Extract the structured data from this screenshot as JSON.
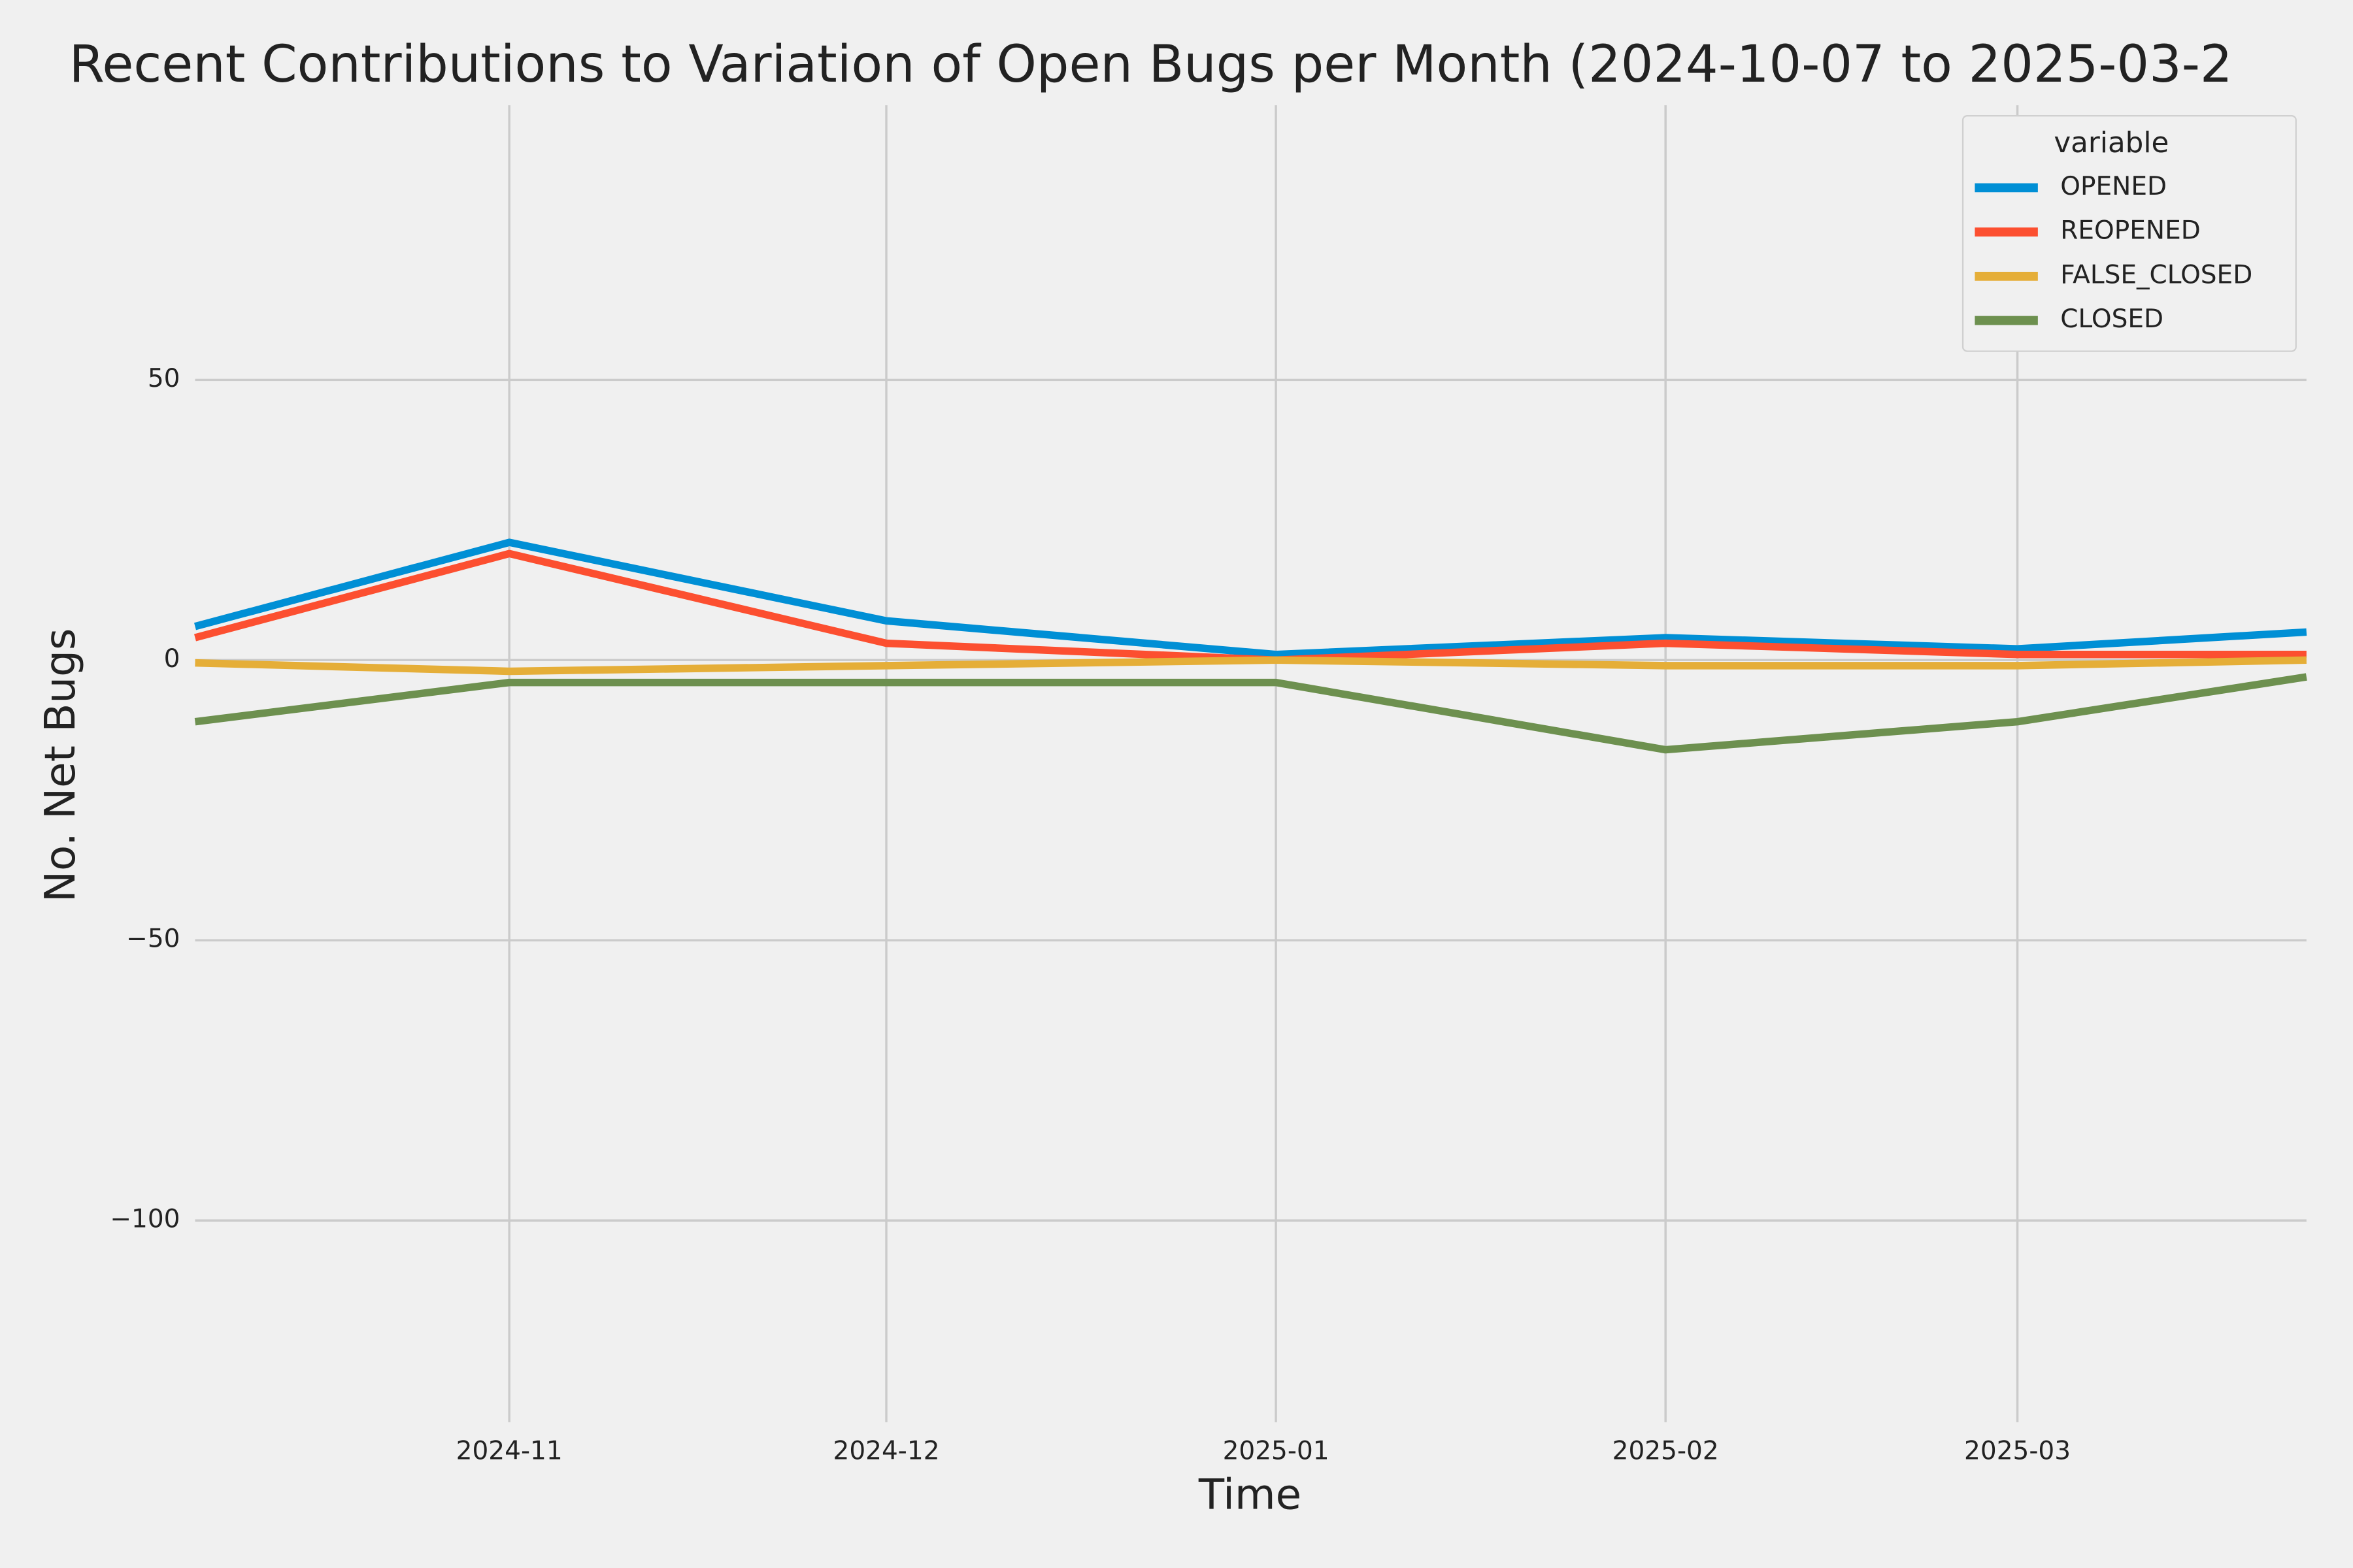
{
  "chart_data": {
    "type": "line",
    "title": "Recent Contributions to Variation of Open Bugs per Month (2024-10-07 to 2025-03-2",
    "x_label": "Time",
    "y_label": "No. Net Bugs",
    "x": [
      "2024-10-07",
      "2024-11",
      "2024-12",
      "2025-01",
      "2025-02",
      "2025-03",
      "2025-03-24"
    ],
    "xlim": [
      "2024-10-07",
      "2025-03-24"
    ],
    "xticks": [
      "2024-11",
      "2024-12",
      "2025-01",
      "2025-02",
      "2025-03"
    ],
    "ylim": [
      -136,
      99
    ],
    "yticks": [
      {
        "value": -100,
        "label": "−100"
      },
      {
        "value": -50,
        "label": "−50"
      },
      0,
      50
    ],
    "grid": true,
    "legend_title": "variable",
    "legend_position": "upper-right",
    "series": [
      {
        "name": "OPENED",
        "color": "#008fd5",
        "values": [
          6,
          21,
          7,
          1,
          4,
          2,
          5
        ]
      },
      {
        "name": "REOPENED",
        "color": "#fc4f30",
        "values": [
          4,
          19,
          3,
          0,
          3,
          1,
          1
        ]
      },
      {
        "name": "FALSE_CLOSED",
        "color": "#e5ae38",
        "values": [
          -0.5,
          -2,
          -1,
          0,
          -1,
          -1,
          0
        ]
      },
      {
        "name": "CLOSED",
        "color": "#6d904f",
        "values": [
          -11,
          -4,
          -4,
          -4,
          -16,
          -11,
          -3
        ]
      }
    ]
  }
}
